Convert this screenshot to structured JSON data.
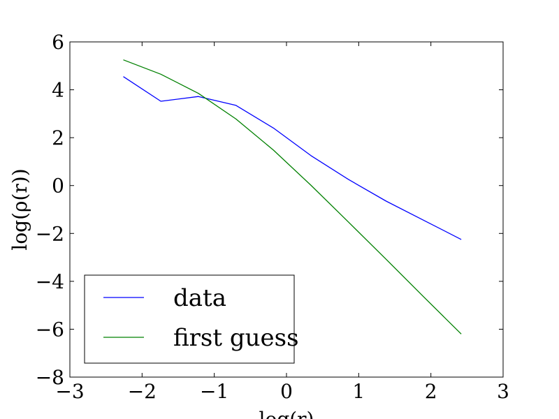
{
  "chart_data": {
    "type": "line",
    "title": "",
    "xlabel": "log(r)",
    "ylabel": "log(ρ(r))",
    "xlim": [
      -3,
      3
    ],
    "ylim": [
      -8,
      6
    ],
    "xticks": [
      -3,
      -2,
      -1,
      0,
      1,
      2,
      3
    ],
    "yticks": [
      -8,
      -6,
      -4,
      -2,
      0,
      2,
      4,
      6
    ],
    "xtick_labels": [
      "−3",
      "−2",
      "−1",
      "0",
      "1",
      "2",
      "3"
    ],
    "ytick_labels": [
      "−8",
      "−6",
      "−4",
      "−2",
      "0",
      "2",
      "4",
      "6"
    ],
    "grid": false,
    "legend_position": "lower-left",
    "series": [
      {
        "name": "data",
        "color": "#0000ff",
        "x": [
          -2.26,
          -1.74,
          -1.22,
          -0.7,
          -0.18,
          0.34,
          0.86,
          1.38,
          1.9,
          2.42
        ],
        "y": [
          4.55,
          3.52,
          3.72,
          3.35,
          2.4,
          1.25,
          0.25,
          -0.65,
          -1.45,
          -2.25
        ]
      },
      {
        "name": "first guess",
        "color": "#008000",
        "x": [
          -2.26,
          -1.74,
          -1.22,
          -0.7,
          -0.18,
          0.34,
          0.86,
          1.38,
          1.9,
          2.42
        ],
        "y": [
          5.25,
          4.65,
          3.85,
          2.78,
          1.48,
          0.01,
          -1.53,
          -3.08,
          -4.65,
          -6.2
        ]
      }
    ]
  }
}
